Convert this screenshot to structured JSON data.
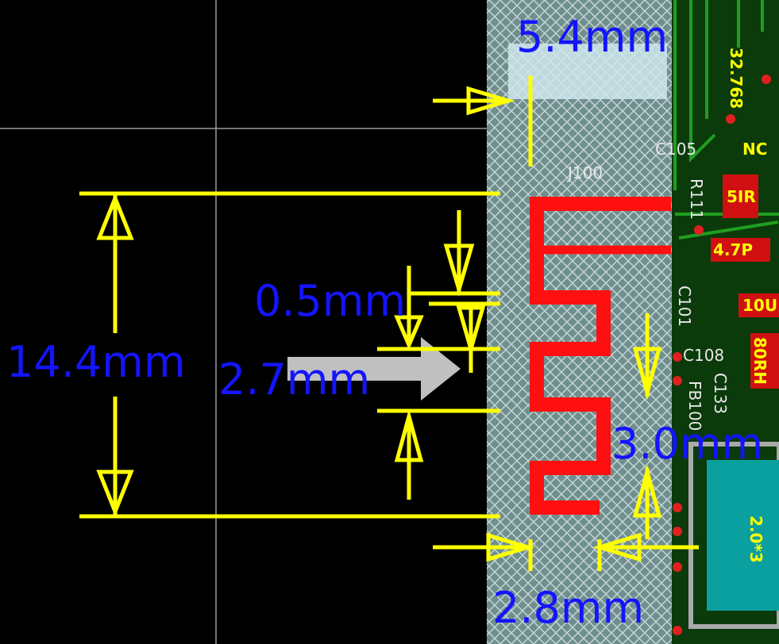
{
  "dimensions": {
    "top_width": "5.4mm",
    "gap": "0.5mm",
    "height": "14.4mm",
    "spacing": "2.7mm",
    "right_gap": "3.0mm",
    "bottom_width": "2.8mm"
  },
  "components": {
    "antenna": "J100",
    "c105": "C105",
    "r111": "R111",
    "c101": "C101",
    "c108": "C108",
    "fb100": "FB100",
    "c133": "C133",
    "r_val": "5IR",
    "c_val": "4.7P",
    "cap_val": "10U",
    "fb_val": "80RH",
    "crystal": "32.768",
    "nc": "NC",
    "header": "2.0*3"
  }
}
